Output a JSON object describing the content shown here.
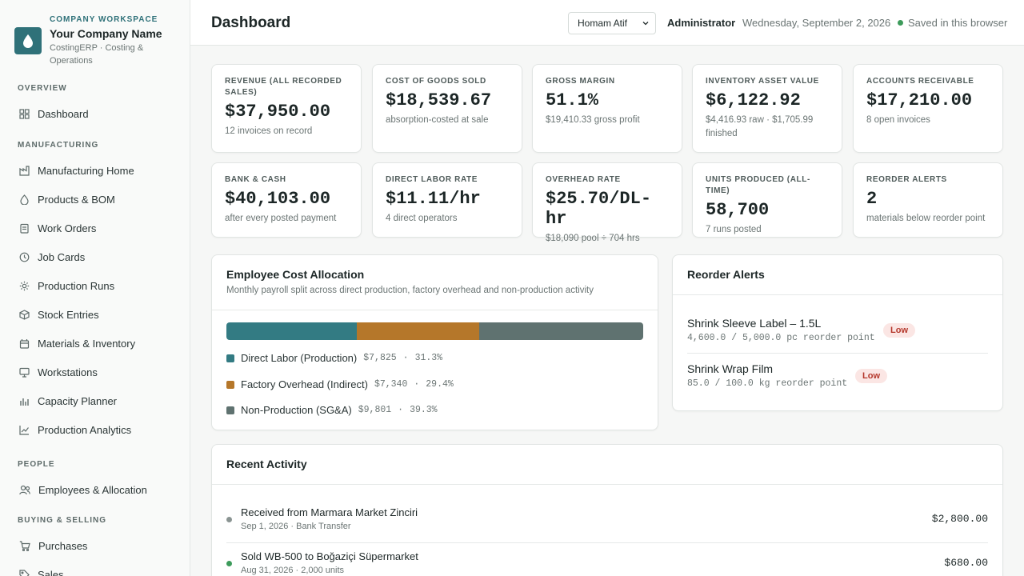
{
  "sidebar": {
    "kicker": "COMPANY WORKSPACE",
    "company_name": "Your Company Name",
    "company_sub": "CostingERP · Costing & Operations",
    "sections": {
      "overview": "OVERVIEW",
      "manufacturing": "MANUFACTURING",
      "people": "PEOPLE",
      "buying": "BUYING & SELLING"
    },
    "items": {
      "dashboard": "Dashboard",
      "mfg_home": "Manufacturing Home",
      "products": "Products & BOM",
      "work_orders": "Work Orders",
      "job_cards": "Job Cards",
      "production_runs": "Production Runs",
      "stock_entries": "Stock Entries",
      "materials": "Materials & Inventory",
      "workstations": "Workstations",
      "capacity": "Capacity Planner",
      "analytics": "Production Analytics",
      "employees": "Employees & Allocation",
      "purchases": "Purchases",
      "sales": "Sales"
    }
  },
  "header": {
    "title": "Dashboard",
    "user_selected": "Homam Atif",
    "role": "Administrator",
    "date": "Wednesday, September 2, 2026",
    "saved": "Saved in this browser"
  },
  "kpis": [
    {
      "label": "REVENUE (ALL RECORDED SALES)",
      "value": "$37,950.00",
      "sub": "12 invoices on record"
    },
    {
      "label": "COST OF GOODS SOLD",
      "value": "$18,539.67",
      "sub": "absorption-costed at sale"
    },
    {
      "label": "GROSS MARGIN",
      "value": "51.1%",
      "sub": "$19,410.33 gross profit"
    },
    {
      "label": "INVENTORY ASSET VALUE",
      "value": "$6,122.92",
      "sub": "$4,416.93 raw · $1,705.99 finished"
    },
    {
      "label": "ACCOUNTS RECEIVABLE",
      "value": "$17,210.00",
      "sub": "8 open invoices"
    },
    {
      "label": "BANK & CASH",
      "value": "$40,103.00",
      "sub": "after every posted payment"
    },
    {
      "label": "DIRECT LABOR RATE",
      "value": "$11.11/hr",
      "sub": "4 direct operators"
    },
    {
      "label": "OVERHEAD RATE",
      "value": "$25.70/DL-hr",
      "sub": "$18,090 pool ÷ 704 hrs"
    },
    {
      "label": "UNITS PRODUCED (ALL-TIME)",
      "value": "58,700",
      "sub": "7 runs posted"
    },
    {
      "label": "REORDER ALERTS",
      "value": "2",
      "sub": "materials below reorder point"
    }
  ],
  "allocation": {
    "title": "Employee Cost Allocation",
    "subtitle": "Monthly payroll split across direct production, factory overhead and non-production activity",
    "segments": [
      {
        "name": "Direct Labor (Production)",
        "amount": "$7,825",
        "pct_label": "31.3%",
        "pct": 31.3,
        "color": "#337b83"
      },
      {
        "name": "Factory Overhead (Indirect)",
        "amount": "$7,340",
        "pct_label": "29.4%",
        "pct": 29.4,
        "color": "#b5772a"
      },
      {
        "name": "Non-Production (SG&A)",
        "amount": "$9,801",
        "pct_label": "39.3%",
        "pct": 39.3,
        "color": "#5f7270"
      }
    ],
    "separator": "·"
  },
  "reorder": {
    "title": "Reorder Alerts",
    "items": [
      {
        "name": "Shrink Sleeve Label – 1.5L",
        "detail": "4,600.0 / 5,000.0 pc reorder point",
        "badge": "Low"
      },
      {
        "name": "Shrink Wrap Film",
        "detail": "85.0 / 100.0 kg reorder point",
        "badge": "Low"
      }
    ]
  },
  "activity": {
    "title": "Recent Activity",
    "items": [
      {
        "title": "Received from Marmara Market Zinciri",
        "meta": "Sep 1, 2026 · Bank Transfer",
        "amount": "$2,800.00",
        "dot_color": "#8a9492"
      },
      {
        "title": "Sold WB-500 to Boğaziçi Süpermarket",
        "meta": "Aug 31, 2026 · 2,000 units",
        "amount": "$680.00",
        "dot_color": "#3d9b5b"
      }
    ]
  }
}
